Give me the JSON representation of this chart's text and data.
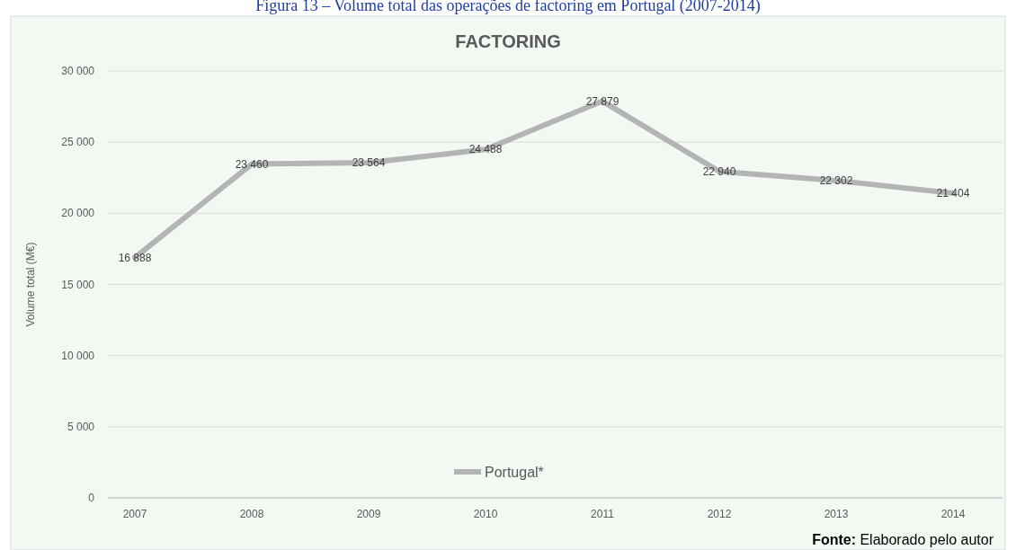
{
  "chart_data": {
    "type": "line",
    "title": "FACTORING",
    "subtitle": "Figura 13 – Volume total das operações de factoring em Portugal (2007-2014)",
    "ylabel": "Volume total (M€)",
    "categories": [
      "2007",
      "2008",
      "2009",
      "2010",
      "2011",
      "2012",
      "2013",
      "2014"
    ],
    "series": [
      {
        "name": "Portugal*",
        "color": "#b4b4b4",
        "values": [
          16888,
          23460,
          23564,
          24488,
          27879,
          22940,
          22302,
          21404
        ]
      }
    ],
    "value_labels": [
      "16 888",
      "23 460",
      "23 564",
      "24 488",
      "27 879",
      "22 940",
      "22 302",
      "21 404"
    ],
    "ylim": [
      0,
      30000
    ],
    "yticks": [
      {
        "value": 0,
        "label": "0"
      },
      {
        "value": 5000,
        "label": "5 000"
      },
      {
        "value": 10000,
        "label": "10 000"
      },
      {
        "value": 15000,
        "label": "15 000"
      },
      {
        "value": 20000,
        "label": "20 000"
      },
      {
        "value": 25000,
        "label": "25 000"
      },
      {
        "value": 30000,
        "label": "30 000"
      }
    ],
    "grid": "y",
    "legend": "bottom",
    "marker": "none",
    "line_style": "solid",
    "annotations": [
      "Fonte: Elaborado pelo autor"
    ]
  }
}
